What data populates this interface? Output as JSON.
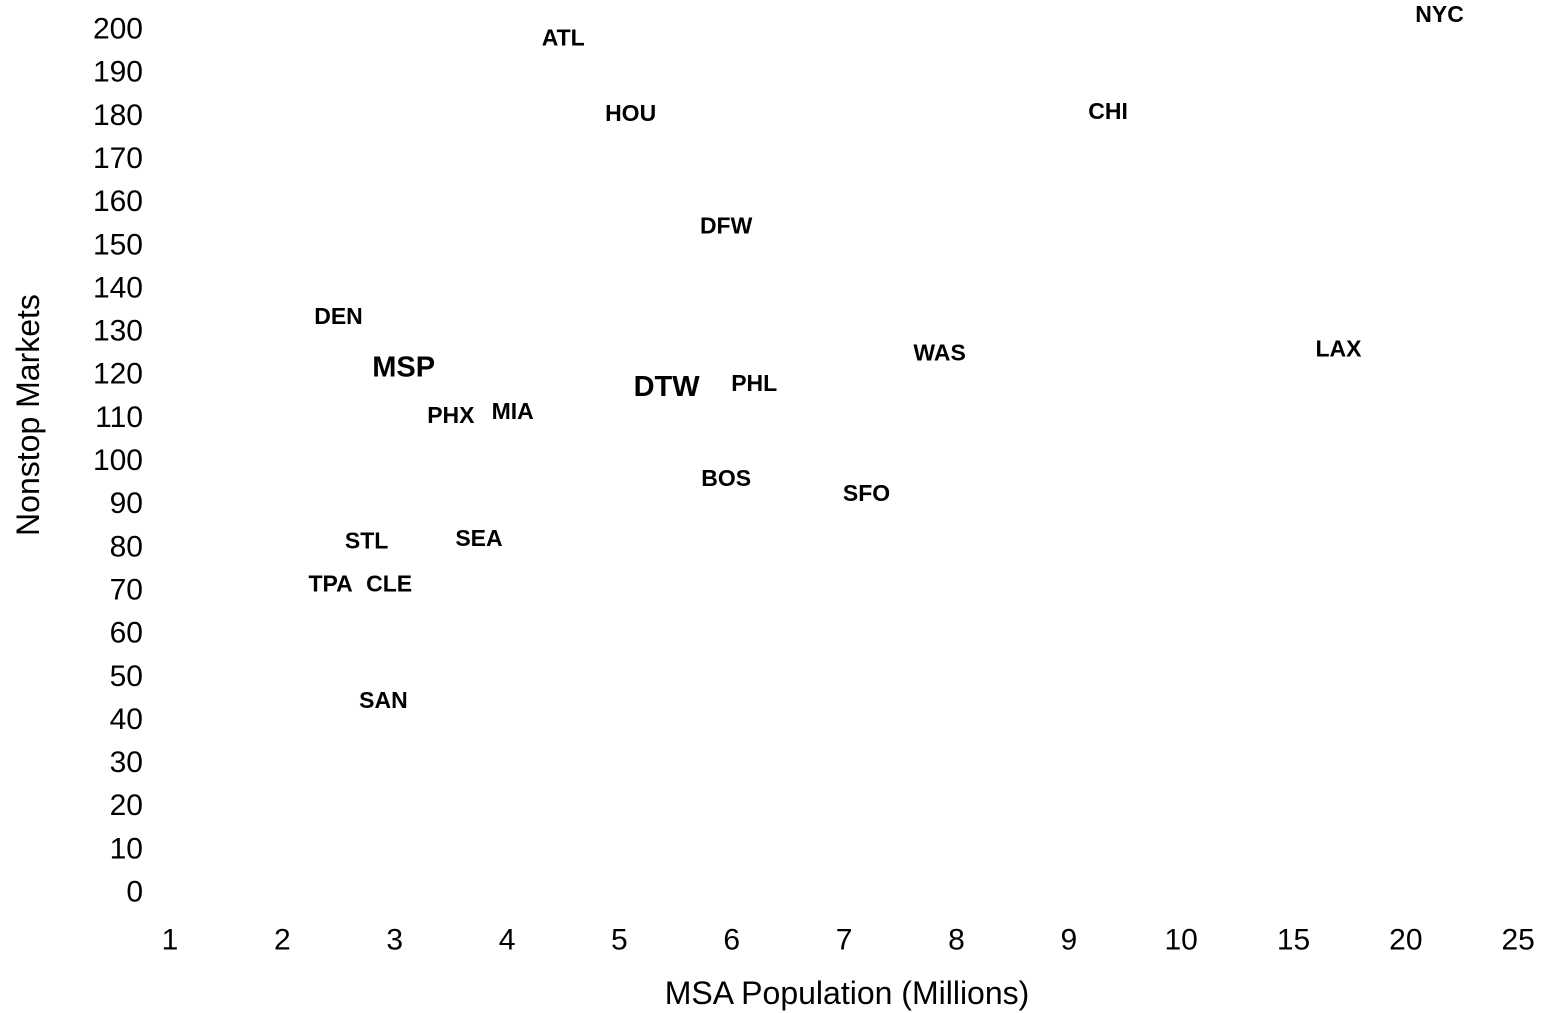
{
  "chart_data": {
    "type": "scatter",
    "title": "",
    "xlabel": "MSA Population (Millions)",
    "ylabel": "Nonstop Markets",
    "x_ticks": [
      "1",
      "2",
      "3",
      "4",
      "5",
      "6",
      "7",
      "8",
      "9",
      "10",
      "15",
      "20",
      "25"
    ],
    "x_tick_values": [
      1,
      2,
      3,
      4,
      5,
      6,
      7,
      8,
      9,
      10,
      15,
      20,
      25
    ],
    "y_ticks": [
      "0",
      "10",
      "20",
      "30",
      "40",
      "50",
      "60",
      "70",
      "80",
      "90",
      "100",
      "110",
      "120",
      "130",
      "140",
      "150",
      "160",
      "170",
      "180",
      "190",
      "200"
    ],
    "ylim": [
      0,
      200
    ],
    "grid": false,
    "legend": "none",
    "marker": "text-label",
    "points": [
      {
        "label": "NYC",
        "x": 21.5,
        "y": 204,
        "emphasis": false
      },
      {
        "label": "ATL",
        "x": 4.5,
        "y": 198,
        "emphasis": false
      },
      {
        "label": "HOU",
        "x": 5.1,
        "y": 180.5,
        "emphasis": false
      },
      {
        "label": "CHI",
        "x": 9.35,
        "y": 181,
        "emphasis": false
      },
      {
        "label": "DFW",
        "x": 5.95,
        "y": 154.5,
        "emphasis": false
      },
      {
        "label": "DEN",
        "x": 2.5,
        "y": 133.5,
        "emphasis": false
      },
      {
        "label": "LAX",
        "x": 17.0,
        "y": 126,
        "emphasis": false
      },
      {
        "label": "WAS",
        "x": 7.85,
        "y": 125,
        "emphasis": false
      },
      {
        "label": "MSP",
        "x": 3.08,
        "y": 121.5,
        "emphasis": true
      },
      {
        "label": "PHL",
        "x": 6.2,
        "y": 118,
        "emphasis": false
      },
      {
        "label": "DTW",
        "x": 5.42,
        "y": 117,
        "emphasis": true
      },
      {
        "label": "MIA",
        "x": 4.05,
        "y": 111.5,
        "emphasis": false
      },
      {
        "label": "PHX",
        "x": 3.5,
        "y": 110.5,
        "emphasis": false
      },
      {
        "label": "BOS",
        "x": 5.95,
        "y": 96,
        "emphasis": false
      },
      {
        "label": "SFO",
        "x": 7.2,
        "y": 92.5,
        "emphasis": false
      },
      {
        "label": "STL",
        "x": 2.75,
        "y": 81.5,
        "emphasis": false
      },
      {
        "label": "SEA",
        "x": 3.75,
        "y": 82,
        "emphasis": false
      },
      {
        "label": "TPA",
        "x": 2.43,
        "y": 71.5,
        "emphasis": false
      },
      {
        "label": "CLE",
        "x": 2.95,
        "y": 71.5,
        "emphasis": false
      },
      {
        "label": "SAN",
        "x": 2.9,
        "y": 44.5,
        "emphasis": false
      }
    ]
  }
}
